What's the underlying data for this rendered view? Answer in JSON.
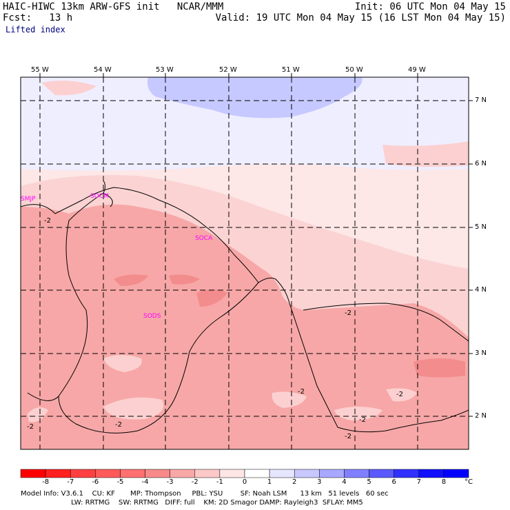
{
  "header": {
    "left_line1": "HAIC-HIWC 13km ARW-GFS init   NCAR/MMM",
    "left_line2": "Fcst:   13 h",
    "variable": "Lifted index",
    "init_line": "Init: 06 UTC Mon 04 May 15",
    "valid_line": "Valid: 19 UTC Mon 04 May 15 (16 LST Mon 04 May 15)"
  },
  "map": {
    "longitude_labels": [
      "55 W",
      "54 W",
      "53 W",
      "52 W",
      "51 W",
      "50 W",
      "49 W"
    ],
    "latitude_labels": [
      "7 N",
      "6 N",
      "5 N",
      "4 N",
      "3 N",
      "2 N"
    ],
    "stations": [
      "SMJP",
      "SOCM",
      "SOCA",
      "SODS"
    ],
    "contour_labels": [
      "-2",
      "-2",
      "-2",
      "-2",
      "-2",
      "-2",
      "-2",
      "-2"
    ]
  },
  "colorbar": {
    "ticks": [
      "-8",
      "-7",
      "-6",
      "-5",
      "-4",
      "-3",
      "-2",
      "-1",
      "0",
      "1",
      "2",
      "3",
      "4",
      "5",
      "6",
      "7",
      "8"
    ],
    "unit": "°C",
    "colors": [
      "#ff0000",
      "#ff2020",
      "#ff4040",
      "#ff5a5a",
      "#ff7070",
      "#f88a8a",
      "#f9a8a8",
      "#fcc8c8",
      "#ffe6e6",
      "#ffffff",
      "#e6e6ff",
      "#c8c8ff",
      "#a8a8ff",
      "#8080ff",
      "#5a5aff",
      "#3030ff",
      "#1010ff",
      "#0000ff"
    ]
  },
  "footer": {
    "line1": "Model Info: V3.6.1    CU: KF       MP: Thompson     PBL: YSU        SF: Noah LSM      13 km   51 levels   60 sec",
    "line2": "                       LW: RRTMG    SW: RRTMG   DIFF: full    KM: 2D Smagor DAMP: Rayleigh3  SFLAY: MM5"
  }
}
